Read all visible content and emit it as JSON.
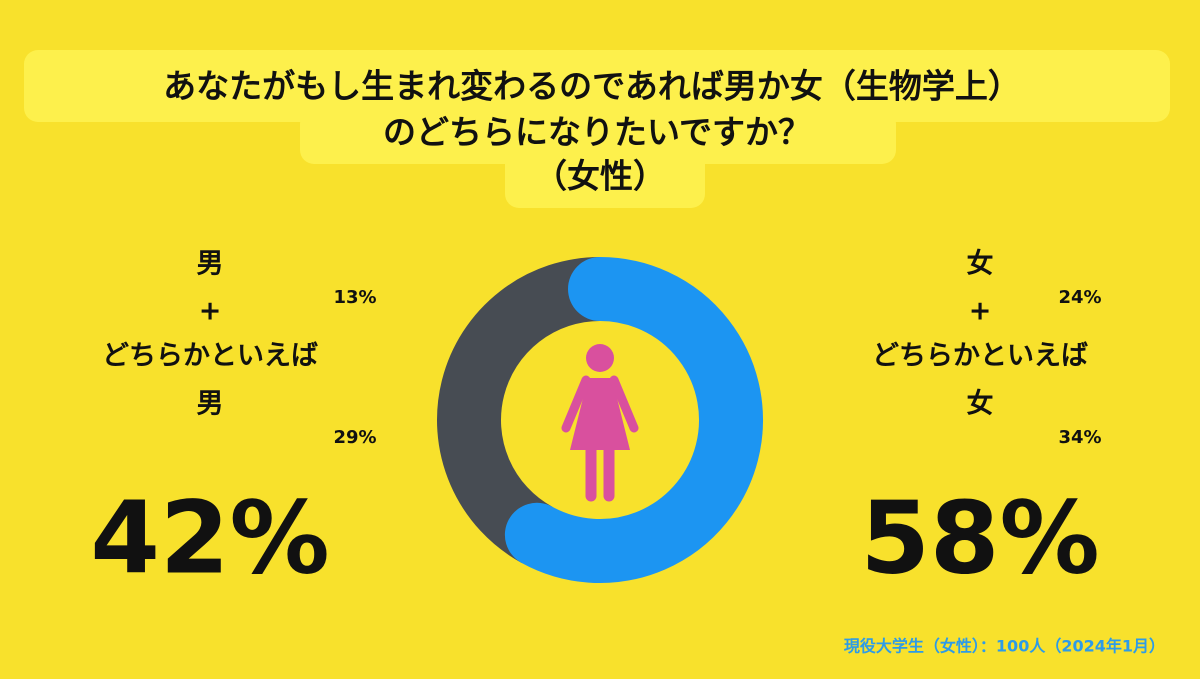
{
  "chart_data": {
    "type": "donut",
    "title": [
      "あなたがもし生まれ変わるのであれば男か女（生物学上）",
      "のどちらになりたいですか？",
      "（女性）"
    ],
    "groups": [
      {
        "name_lines": [
          "男",
          "+",
          "どちらかといえば",
          "男"
        ],
        "color": "#474c53",
        "total": 42,
        "total_label": "42%",
        "parts": [
          {
            "value": 13,
            "label": "13%"
          },
          {
            "value": 29,
            "label": "29%"
          }
        ]
      },
      {
        "name_lines": [
          "女",
          "+",
          "どちらかといえば",
          "女"
        ],
        "color": "#1c95f2",
        "total": 58,
        "total_label": "58%",
        "parts": [
          {
            "value": 24,
            "label": "24%"
          },
          {
            "value": 34,
            "label": "34%"
          }
        ]
      }
    ],
    "note": "現役大学生（女性）：100人（2024年1月）"
  }
}
